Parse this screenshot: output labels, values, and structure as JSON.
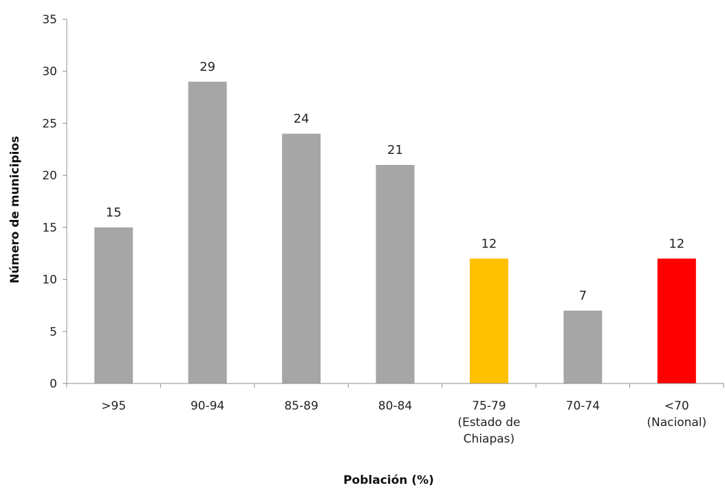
{
  "chart_data": {
    "type": "bar",
    "xlabel": "Población (%)",
    "ylabel": "Número de municipios",
    "ylim": [
      0,
      35
    ],
    "yticks": [
      0,
      5,
      10,
      15,
      20,
      25,
      30,
      35
    ],
    "categories": [
      ">95",
      "90-94",
      "85-89",
      "80-84",
      "75-79\n(Estado de\nChiapas)",
      "70-74",
      "<70\n(Nacional)"
    ],
    "values": [
      15,
      29,
      24,
      21,
      12,
      7,
      12
    ],
    "data_labels": [
      "15",
      "29",
      "24",
      "21",
      "12",
      "7",
      "12"
    ],
    "bar_colors": [
      "#a6a6a6",
      "#a6a6a6",
      "#a6a6a6",
      "#a6a6a6",
      "#ffc000",
      "#a6a6a6",
      "#ff0000"
    ],
    "grid": false,
    "legend": "none"
  }
}
